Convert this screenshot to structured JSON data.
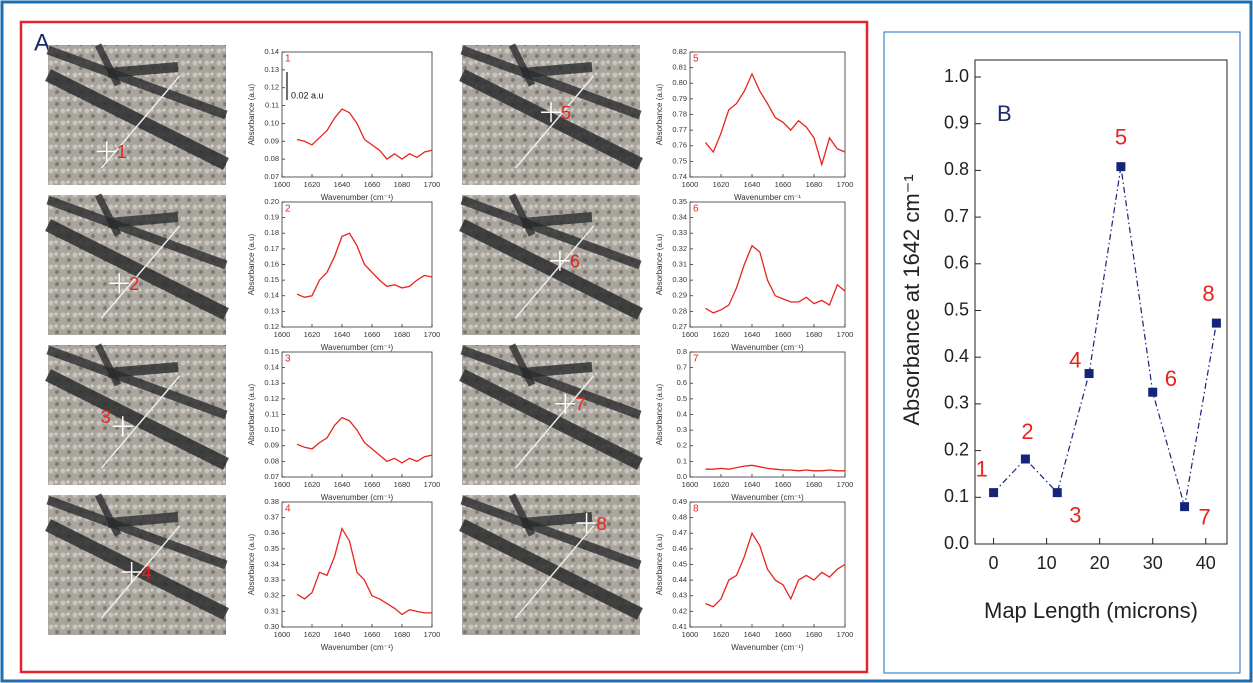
{
  "panel_a_label": "A",
  "images": [
    {
      "label": "1"
    },
    {
      "label": "2"
    },
    {
      "label": "3"
    },
    {
      "label": "4"
    },
    {
      "label": "5"
    },
    {
      "label": "6"
    },
    {
      "label": "7"
    },
    {
      "label": "8"
    }
  ],
  "chart_data": [
    {
      "type": "line",
      "annotation": "1",
      "scale_bar_label": "0.02 a.u",
      "color": "#e8231f",
      "xlabel": "Wavenumber (cm⁻¹)",
      "ylabel": "Absorbance (a.u)",
      "x": [
        1610,
        1615,
        1620,
        1625,
        1630,
        1635,
        1640,
        1645,
        1650,
        1655,
        1660,
        1665,
        1670,
        1675,
        1680,
        1685,
        1690,
        1695,
        1700
      ],
      "values": [
        0.091,
        0.09,
        0.088,
        0.092,
        0.096,
        0.103,
        0.108,
        0.106,
        0.1,
        0.091,
        0.088,
        0.085,
        0.08,
        0.083,
        0.08,
        0.083,
        0.081,
        0.084,
        0.085
      ],
      "xlim": [
        1600,
        1700
      ],
      "xticks": [
        1600,
        1620,
        1640,
        1660,
        1680,
        1700
      ],
      "ylim": [
        0.07,
        0.14
      ],
      "yticks": [
        0.07,
        0.08,
        0.09,
        {
          "value": 0.1,
          "label": "0.10"
        },
        0.11,
        0.12,
        0.13,
        0.14
      ]
    },
    {
      "type": "line",
      "annotation": "2",
      "color": "#e8231f",
      "xlabel": "Wavenumber (cm⁻¹)",
      "ylabel": "Absorbance (a.u)",
      "x": [
        1610,
        1615,
        1620,
        1625,
        1630,
        1635,
        1640,
        1645,
        1650,
        1655,
        1660,
        1665,
        1670,
        1675,
        1680,
        1685,
        1690,
        1695,
        1700
      ],
      "values": [
        0.141,
        0.139,
        0.14,
        0.15,
        0.155,
        0.165,
        0.178,
        0.18,
        0.172,
        0.16,
        0.155,
        0.15,
        0.146,
        0.147,
        0.145,
        0.146,
        0.15,
        0.153,
        0.152
      ],
      "xlim": [
        1600,
        1700
      ],
      "xticks": [
        1600,
        1620,
        1640,
        1660,
        1680,
        1700
      ],
      "ylim": [
        0.12,
        0.2
      ],
      "yticks": [
        0.12,
        0.13,
        0.14,
        0.15,
        0.16,
        0.17,
        0.18,
        0.19,
        {
          "value": 0.2,
          "label": "0.20"
        }
      ]
    },
    {
      "type": "line",
      "annotation": "3",
      "color": "#e8231f",
      "xlabel": "Wavenumber (cm⁻¹)",
      "ylabel": "Absorbance (a.u)",
      "x": [
        1610,
        1615,
        1620,
        1625,
        1630,
        1635,
        1640,
        1645,
        1650,
        1655,
        1660,
        1665,
        1670,
        1675,
        1680,
        1685,
        1690,
        1695,
        1700
      ],
      "values": [
        0.091,
        0.089,
        0.088,
        0.092,
        0.095,
        0.103,
        0.108,
        0.106,
        0.1,
        0.092,
        0.088,
        0.084,
        0.08,
        0.082,
        0.079,
        0.082,
        0.08,
        0.083,
        0.084
      ],
      "xlim": [
        1600,
        1700
      ],
      "xticks": [
        1600,
        1620,
        1640,
        1660,
        1680,
        1700
      ],
      "ylim": [
        0.07,
        0.15
      ],
      "yticks": [
        0.07,
        0.08,
        0.09,
        {
          "value": 0.1,
          "label": "0.10"
        },
        0.11,
        0.12,
        0.13,
        0.14,
        0.15
      ]
    },
    {
      "type": "line",
      "annotation": "4",
      "color": "#e8231f",
      "xlabel": "Wavenumber (cm⁻¹)",
      "ylabel": "Absorbance (a.u)",
      "x": [
        1610,
        1615,
        1620,
        1625,
        1630,
        1635,
        1640,
        1645,
        1650,
        1655,
        1660,
        1665,
        1670,
        1675,
        1680,
        1685,
        1690,
        1695,
        1700
      ],
      "values": [
        0.321,
        0.318,
        0.322,
        0.335,
        0.333,
        0.345,
        0.363,
        0.355,
        0.335,
        0.33,
        0.32,
        0.318,
        0.315,
        0.312,
        0.308,
        0.311,
        0.31,
        0.309,
        0.309
      ],
      "xlim": [
        1600,
        1700
      ],
      "xticks": [
        1600,
        1620,
        1640,
        1660,
        1680,
        1700
      ],
      "ylim": [
        0.3,
        0.38
      ],
      "yticks": [
        {
          "value": 0.3,
          "label": "0.30"
        },
        0.31,
        0.32,
        0.33,
        0.34,
        0.35,
        0.36,
        0.37,
        0.38
      ]
    },
    {
      "type": "line",
      "annotation": "5",
      "color": "#e8231f",
      "xlabel": "Wavenumber cm⁻¹",
      "ylabel": "Absorbance (a.u)",
      "x": [
        1610,
        1615,
        1620,
        1625,
        1630,
        1635,
        1640,
        1645,
        1650,
        1655,
        1660,
        1665,
        1670,
        1675,
        1680,
        1685,
        1690,
        1695,
        1700
      ],
      "values": [
        0.762,
        0.756,
        0.768,
        0.783,
        0.787,
        0.795,
        0.806,
        0.795,
        0.787,
        0.778,
        0.775,
        0.77,
        0.776,
        0.772,
        0.765,
        0.748,
        0.765,
        0.758,
        0.756
      ],
      "xlim": [
        1600,
        1700
      ],
      "xticks": [
        1600,
        1620,
        1640,
        1660,
        1680,
        1700
      ],
      "ylim": [
        0.74,
        0.82
      ],
      "yticks": [
        0.74,
        0.75,
        0.76,
        0.77,
        0.78,
        0.79,
        {
          "value": 0.8,
          "label": "0.80"
        },
        0.81,
        0.82
      ]
    },
    {
      "type": "line",
      "annotation": "6",
      "color": "#e8231f",
      "xlabel": "Wavenumber (cm⁻¹)",
      "ylabel": "Absorbance (a.u)",
      "x": [
        1610,
        1615,
        1620,
        1625,
        1630,
        1635,
        1640,
        1645,
        1650,
        1655,
        1660,
        1665,
        1670,
        1675,
        1680,
        1685,
        1690,
        1695,
        1700
      ],
      "values": [
        0.282,
        0.279,
        0.281,
        0.284,
        0.295,
        0.31,
        0.322,
        0.318,
        0.3,
        0.29,
        0.288,
        0.286,
        0.286,
        0.289,
        0.285,
        0.287,
        0.284,
        0.297,
        0.293
      ],
      "xlim": [
        1600,
        1700
      ],
      "xticks": [
        1600,
        1620,
        1640,
        1660,
        1680,
        1700
      ],
      "ylim": [
        0.27,
        0.35
      ],
      "yticks": [
        0.27,
        0.28,
        0.29,
        {
          "value": 0.3,
          "label": "0.30"
        },
        0.31,
        0.32,
        0.33,
        0.34,
        0.35
      ]
    },
    {
      "type": "line",
      "annotation": "7",
      "color": "#e8231f",
      "xlabel": "Wavenumber (cm⁻¹)",
      "ylabel": "Absorbance (a.u)",
      "x": [
        1610,
        1615,
        1620,
        1625,
        1630,
        1635,
        1640,
        1645,
        1650,
        1655,
        1660,
        1665,
        1670,
        1675,
        1680,
        1685,
        1690,
        1695,
        1700
      ],
      "values": [
        0.05,
        0.05,
        0.055,
        0.05,
        0.06,
        0.07,
        0.075,
        0.065,
        0.055,
        0.05,
        0.045,
        0.045,
        0.04,
        0.045,
        0.04,
        0.04,
        0.045,
        0.04,
        0.04
      ],
      "xlim": [
        1600,
        1700
      ],
      "xticks": [
        1600,
        1620,
        1640,
        1660,
        1680,
        1700
      ],
      "ylim": [
        0,
        0.8
      ],
      "yticks": [
        {
          "value": 0,
          "label": "0.0"
        },
        0.1,
        0.2,
        0.3,
        0.4,
        0.5,
        0.6,
        0.7,
        0.8
      ]
    },
    {
      "type": "line",
      "annotation": "8",
      "color": "#e8231f",
      "xlabel": "Wavenumber (cm⁻¹)",
      "ylabel": "Absorbance (a.u)",
      "x": [
        1610,
        1615,
        1620,
        1625,
        1630,
        1635,
        1640,
        1645,
        1650,
        1655,
        1660,
        1665,
        1670,
        1675,
        1680,
        1685,
        1690,
        1695,
        1700
      ],
      "values": [
        0.425,
        0.423,
        0.428,
        0.44,
        0.443,
        0.455,
        0.47,
        0.462,
        0.447,
        0.44,
        0.437,
        0.428,
        0.44,
        0.443,
        0.44,
        0.445,
        0.442,
        0.447,
        0.45
      ],
      "xlim": [
        1600,
        1700
      ],
      "xticks": [
        1600,
        1620,
        1640,
        1660,
        1680,
        1700
      ],
      "ylim": [
        0.41,
        0.49
      ],
      "yticks": [
        0.41,
        0.42,
        0.43,
        0.44,
        0.45,
        0.46,
        0.47,
        0.48,
        0.49
      ]
    },
    {
      "type": "scatter",
      "annotation": "B",
      "color": "#16237a",
      "line_style": "dash-dot",
      "label_color": "#e8231f",
      "xlabel": "Map Length (microns)",
      "ylabel": "Absorbance at 1642 cm⁻¹",
      "x": [
        0,
        6,
        12,
        18,
        24,
        30,
        36,
        42
      ],
      "values": [
        0.11,
        0.182,
        0.11,
        0.365,
        0.808,
        0.325,
        0.08,
        0.473
      ],
      "point_labels": [
        "1",
        "2",
        "3",
        "4",
        "5",
        "6",
        "7",
        "8"
      ],
      "xlim": [
        -3.5,
        44
      ],
      "xticks": [
        0,
        10,
        20,
        30,
        40
      ],
      "ylim": [
        0,
        1
      ],
      "yticks": [
        {
          "value": 0,
          "label": "0.0"
        },
        0.1,
        0.2,
        0.3,
        0.4,
        0.5,
        0.6,
        0.7,
        0.8,
        0.9,
        {
          "value": 1,
          "label": "1.0"
        }
      ]
    }
  ]
}
